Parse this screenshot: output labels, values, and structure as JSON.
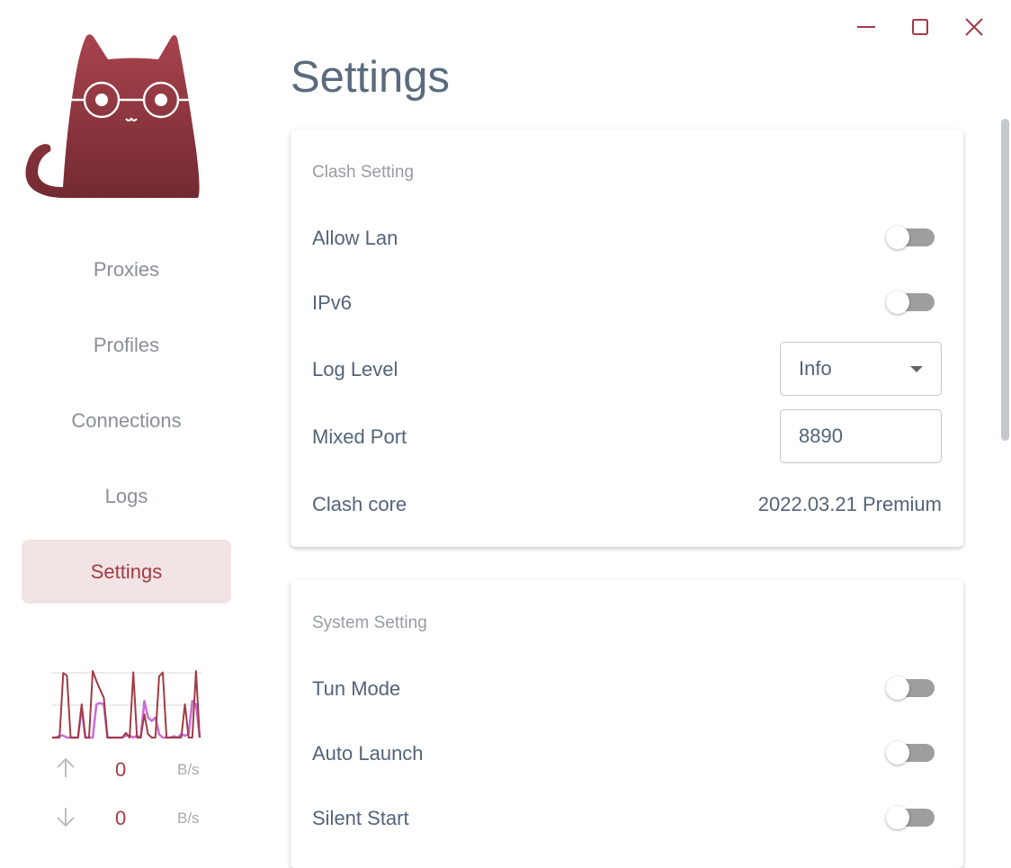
{
  "window": {
    "minimize_icon": "minus-icon",
    "maximize_icon": "square-icon",
    "close_icon": "x-icon",
    "accent": "#a13b45"
  },
  "sidebar": {
    "items": [
      {
        "label": "Proxies"
      },
      {
        "label": "Profiles"
      },
      {
        "label": "Connections"
      },
      {
        "label": "Logs"
      },
      {
        "label": "Settings",
        "active": true
      }
    ],
    "traffic": {
      "upload": {
        "value": "0",
        "unit": "B/s",
        "icon": "arrow-up-icon"
      },
      "download": {
        "value": "0",
        "unit": "B/s",
        "icon": "arrow-down-icon"
      },
      "series": [
        {
          "color": "#c86dd7",
          "values": [
            0,
            0,
            0.03,
            0.03,
            0,
            0,
            0,
            0,
            0.45,
            0,
            0,
            0,
            0.5,
            0.52,
            0.5,
            0,
            0,
            0,
            0,
            0,
            0.03,
            0.03,
            0,
            0.03,
            0,
            0.55,
            0.3,
            0.25,
            0.3,
            0.05,
            0,
            0,
            0,
            0.02,
            0,
            0.05,
            0.03,
            0.05,
            0.55,
            0.5,
            0
          ]
        },
        {
          "color": "#a13b45",
          "values": [
            0,
            0,
            0,
            0.97,
            0.93,
            0,
            0,
            0,
            0.5,
            0,
            0,
            1.0,
            0.85,
            0.72,
            0.6,
            0,
            0,
            0,
            0,
            0,
            0.07,
            0,
            0.98,
            0,
            0,
            0.35,
            0.05,
            0,
            0,
            0.92,
            0.98,
            0,
            0,
            0,
            0,
            0,
            0.5,
            0,
            0,
            1.0,
            0
          ]
        }
      ]
    }
  },
  "main": {
    "title": "Settings",
    "clash": {
      "title": "Clash Setting",
      "allow_lan": {
        "label": "Allow Lan",
        "on": false
      },
      "ipv6": {
        "label": "IPv6",
        "on": false
      },
      "log_level": {
        "label": "Log Level",
        "value": "Info"
      },
      "mixed_port": {
        "label": "Mixed Port",
        "value": "8890"
      },
      "core": {
        "label": "Clash core",
        "value": "2022.03.21 Premium"
      }
    },
    "system": {
      "title": "System Setting",
      "tun_mode": {
        "label": "Tun Mode",
        "on": false
      },
      "auto_launch": {
        "label": "Auto Launch",
        "on": false
      },
      "silent_start": {
        "label": "Silent Start",
        "on": false
      }
    }
  }
}
